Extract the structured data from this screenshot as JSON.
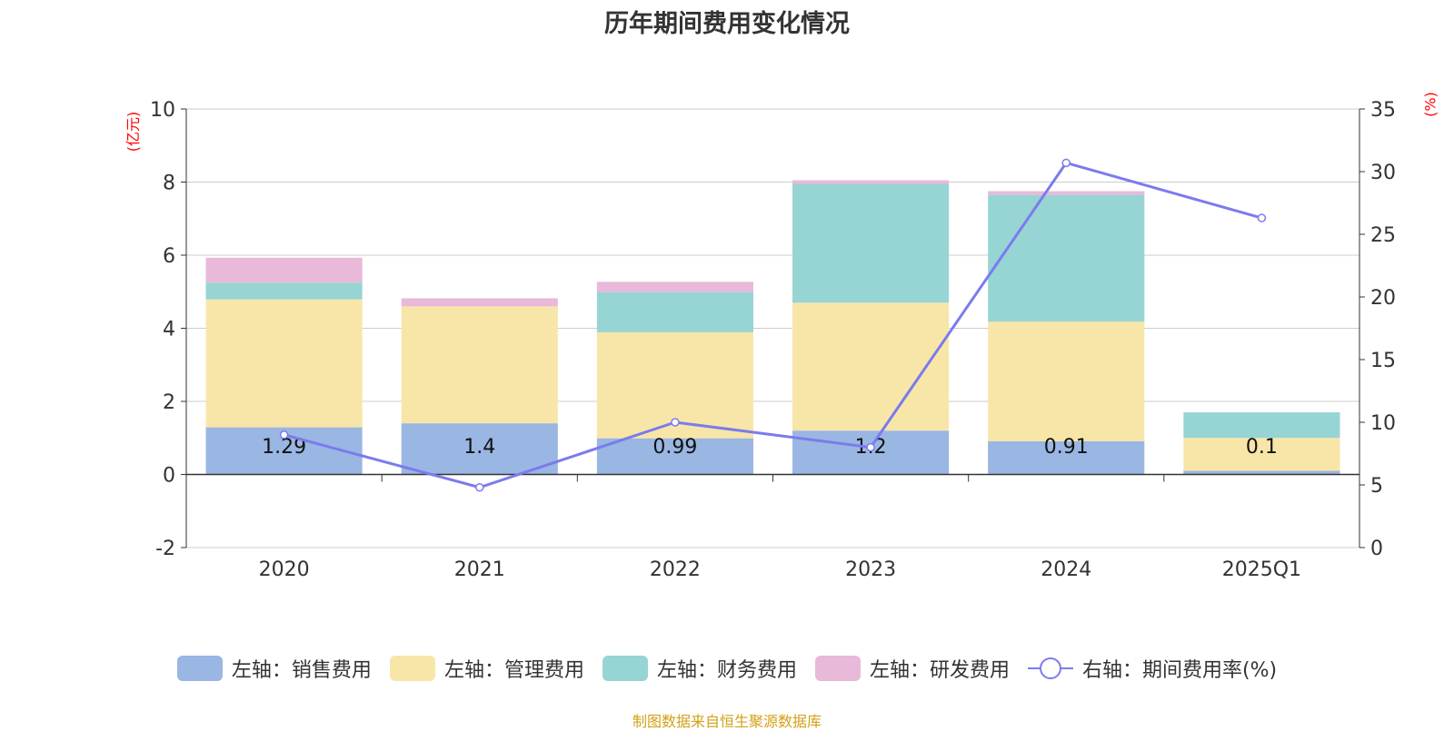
{
  "title": "历年期间费用变化情况",
  "left_unit": "(亿元)",
  "right_unit": "(%)",
  "source": "制图数据来自恒生聚源数据库",
  "colors": {
    "sales": "#9ab6e2",
    "admin": "#f8e6a8",
    "finance": "#97d4d4",
    "rd": "#e8b9d9",
    "rate": "#7b7bee"
  },
  "legend": {
    "sales": "左轴：销售费用",
    "admin": "左轴：管理费用",
    "finance": "左轴：财务费用",
    "rd": "左轴：研发费用",
    "rate": "右轴：期间费用率(%)"
  },
  "chart_data": {
    "type": "bar",
    "title": "历年期间费用变化情况",
    "categories": [
      "2020",
      "2021",
      "2022",
      "2023",
      "2024",
      "2025Q1"
    ],
    "stacked": true,
    "series": [
      {
        "name": "左轴：销售费用",
        "axis": "left",
        "values": [
          1.29,
          1.4,
          0.99,
          1.2,
          0.91,
          0.1
        ],
        "labels": [
          "1.29",
          "1.4",
          "0.99",
          "1.2",
          "0.91",
          "0.1"
        ]
      },
      {
        "name": "左轴：管理费用",
        "axis": "left",
        "values": [
          3.5,
          3.2,
          2.9,
          3.5,
          3.27,
          0.9
        ]
      },
      {
        "name": "左轴：财务费用",
        "axis": "left",
        "values": [
          0.46,
          0.0,
          1.1,
          3.25,
          3.47,
          0.7
        ]
      },
      {
        "name": "左轴：研发费用",
        "axis": "left",
        "values": [
          0.68,
          0.22,
          0.28,
          0.1,
          0.1,
          0.0
        ]
      },
      {
        "name": "右轴：期间费用率(%)",
        "axis": "right",
        "type": "line",
        "values": [
          9.0,
          4.8,
          10.0,
          8.0,
          30.7,
          26.3
        ]
      }
    ],
    "left_axis": {
      "label": "(亿元)",
      "min": -2,
      "max": 10,
      "ticks": [
        -2,
        0,
        2,
        4,
        6,
        8,
        10
      ]
    },
    "right_axis": {
      "label": "(%)",
      "min": 0,
      "max": 35,
      "ticks": [
        0,
        5,
        10,
        15,
        20,
        25,
        30,
        35
      ]
    },
    "grid": true,
    "legend_position": "bottom"
  }
}
